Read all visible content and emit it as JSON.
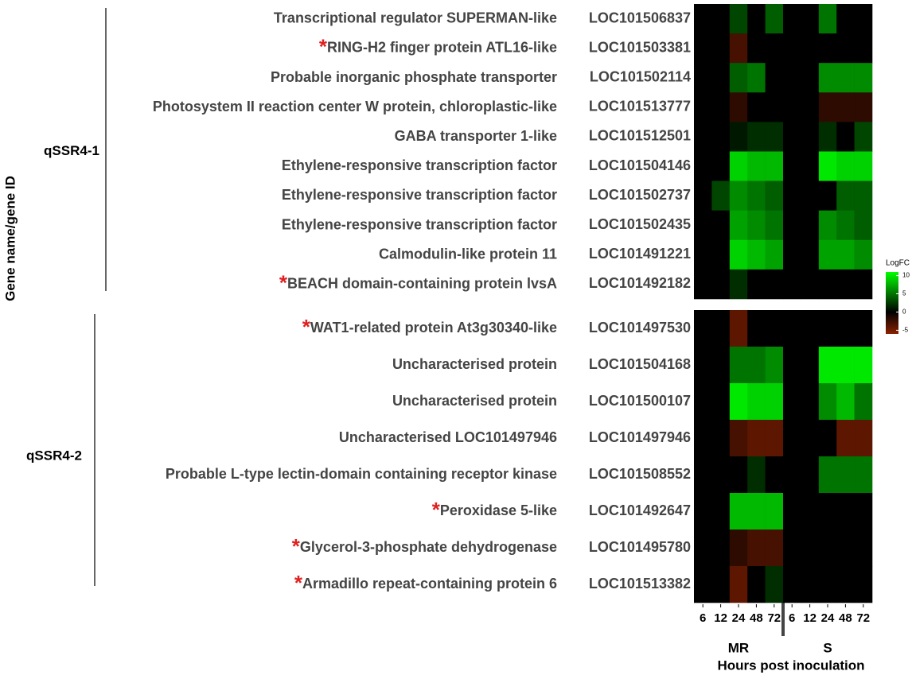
{
  "chart_data": {
    "type": "heatmap",
    "y_label": "Gene name/gene ID",
    "x_label": "Hours post inoculation",
    "column_groups": [
      {
        "name": "MR",
        "hours": [
          6,
          12,
          24,
          48,
          72
        ]
      },
      {
        "name": "S",
        "hours": [
          6,
          12,
          24,
          48,
          72
        ]
      }
    ],
    "colorscale": {
      "low": "#8b2200",
      "mid": "#000000",
      "high": "#00ff00"
    },
    "clim": [
      -6,
      11
    ],
    "legend_title": "LogFC",
    "legend_ticks": [
      10,
      5,
      0,
      -5
    ],
    "panels": [
      {
        "name": "qSSR4-1",
        "rows": [
          {
            "gene": "Transcriptional regulator SUPERMAN-like",
            "id": "LOC101506837",
            "values": [
              0,
              0,
              3,
              0,
              4,
              0,
              0,
              5,
              0,
              0
            ]
          },
          {
            "marker": "*",
            "gene": "RING-H2 finger protein ATL16-like",
            "id": "LOC101503381",
            "values": [
              0,
              0,
              -3,
              0,
              0,
              0,
              0,
              0,
              0,
              0
            ]
          },
          {
            "gene": "Probable inorganic phosphate transporter",
            "id": "LOC101502114",
            "values": [
              0,
              0,
              4,
              5,
              0,
              0,
              0,
              6,
              6,
              6
            ]
          },
          {
            "gene": "Photosystem II reaction center W protein, chloroplastic-like",
            "id": "LOC101513777",
            "values": [
              0,
              0,
              -2,
              0,
              0,
              0,
              0,
              -2,
              -2,
              -2
            ]
          },
          {
            "gene": "GABA transporter 1-like",
            "id": "LOC101512501",
            "values": [
              0,
              0,
              1,
              2,
              2,
              0,
              0,
              2,
              0,
              3
            ]
          },
          {
            "gene": "Ethylene-responsive transcription factor",
            "id": "LOC101504146",
            "values": [
              0,
              0,
              9,
              8,
              8,
              0,
              0,
              10,
              9,
              9
            ]
          },
          {
            "gene": "Ethylene-responsive transcription factor",
            "id": "LOC101502737",
            "values": [
              0,
              3,
              6,
              5,
              4,
              0,
              0,
              0,
              4,
              4
            ]
          },
          {
            "gene": "Ethylene-responsive transcription factor",
            "id": "LOC101502435",
            "values": [
              0,
              0,
              7,
              6,
              5,
              0,
              0,
              6,
              5,
              4
            ]
          },
          {
            "gene": "Calmodulin-like protein 11",
            "id": "LOC101491221",
            "values": [
              0,
              0,
              9,
              8,
              7,
              0,
              0,
              7,
              7,
              6
            ]
          },
          {
            "marker": "*",
            "gene": "BEACH domain-containing protein lvsA",
            "id": "LOC101492182",
            "values": [
              0,
              0,
              2,
              0,
              0,
              0,
              0,
              0,
              0,
              0
            ]
          }
        ]
      },
      {
        "name": "qSSR4-2",
        "rows": [
          {
            "marker": "*",
            "gene": "WAT1-related protein At3g30340-like",
            "id": "LOC101497530",
            "values": [
              0,
              0,
              -4,
              0,
              0,
              0,
              0,
              0,
              0,
              0
            ]
          },
          {
            "gene": "Uncharacterised protein",
            "id": "LOC101504168",
            "values": [
              0,
              0,
              5,
              5,
              6,
              0,
              0,
              10,
              10,
              10
            ]
          },
          {
            "gene": "Uncharacterised protein",
            "id": "LOC101500107",
            "values": [
              0,
              0,
              10,
              9,
              9,
              0,
              0,
              6,
              8,
              5
            ]
          },
          {
            "gene": "Uncharacterised LOC101497946",
            "id": "LOC101497946",
            "values": [
              0,
              0,
              -3,
              -4,
              -4,
              0,
              0,
              0,
              -4,
              -4
            ]
          },
          {
            "gene": "Probable L-type lectin-domain containing receptor kinase",
            "id": "LOC101508552",
            "values": [
              0,
              0,
              0,
              2,
              0,
              0,
              0,
              5,
              5,
              5
            ]
          },
          {
            "marker": "*",
            "gene": "Peroxidase 5-like",
            "id": "LOC101492647",
            "values": [
              0,
              0,
              8,
              8,
              8,
              0,
              0,
              0,
              0,
              0
            ]
          },
          {
            "marker": "*",
            "gene": "Glycerol-3-phosphate dehydrogenase",
            "id": "LOC101495780",
            "values": [
              0,
              0,
              -2,
              -3,
              -3,
              0,
              0,
              0,
              0,
              0
            ]
          },
          {
            "marker": "*",
            "gene": "Armadillo repeat-containing protein 6",
            "id": "LOC101513382",
            "values": [
              0,
              0,
              -4,
              0,
              2,
              0,
              0,
              0,
              0,
              0
            ]
          }
        ]
      }
    ]
  }
}
